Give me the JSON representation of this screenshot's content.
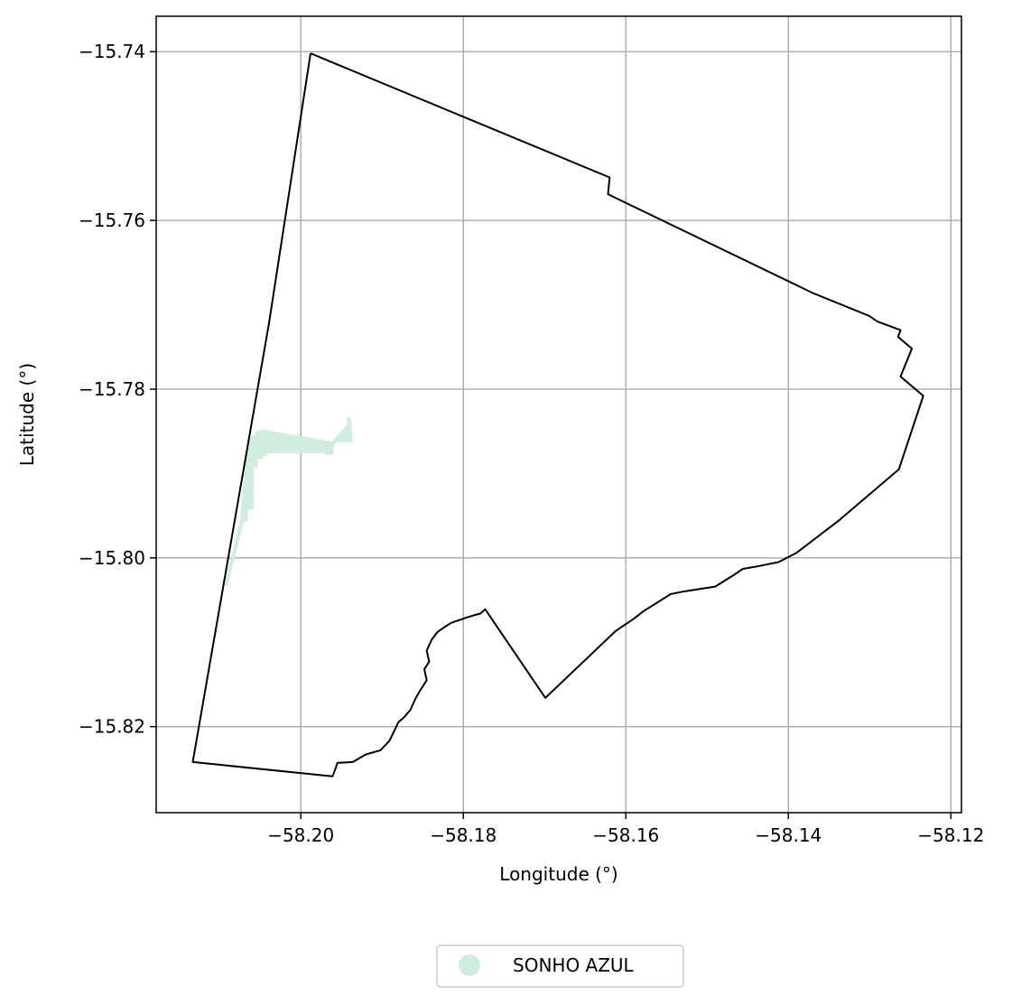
{
  "chart_data": {
    "type": "map",
    "xlabel": "Longitude (°)",
    "ylabel": "Latitude (°)",
    "xlim": [
      -58.2178,
      -58.1187
    ],
    "ylim": [
      -15.8302,
      -15.7358
    ],
    "grid": true,
    "xticks": [
      -58.2,
      -58.18,
      -58.16,
      -58.14,
      -58.12
    ],
    "yticks": [
      -15.74,
      -15.76,
      -15.78,
      -15.8,
      -15.82
    ],
    "xtick_labels": [
      "−58.20",
      "−58.18",
      "−58.16",
      "−58.14",
      "−58.12"
    ],
    "ytick_labels": [
      "−15.74",
      "−15.76",
      "−15.78",
      "−15.80",
      "−15.82"
    ],
    "boundary": {
      "stroke": "#000000",
      "coords": [
        [
          -58.1988,
          -15.7402
        ],
        [
          -58.162,
          -15.7549
        ],
        [
          -58.1622,
          -15.7569
        ],
        [
          -58.137,
          -15.7686
        ],
        [
          -58.1301,
          -15.7713
        ],
        [
          -58.129,
          -15.772
        ],
        [
          -58.1262,
          -15.773
        ],
        [
          -58.1265,
          -15.7738
        ],
        [
          -58.1248,
          -15.7752
        ],
        [
          -58.1262,
          -15.7785
        ],
        [
          -58.1234,
          -15.7808
        ],
        [
          -58.1264,
          -15.7895
        ],
        [
          -58.1337,
          -15.7955
        ],
        [
          -58.139,
          -15.7994
        ],
        [
          -58.1412,
          -15.8005
        ],
        [
          -58.1438,
          -15.801
        ],
        [
          -58.1456,
          -15.8013
        ],
        [
          -58.147,
          -15.8022
        ],
        [
          -58.149,
          -15.8034
        ],
        [
          -58.153,
          -15.804
        ],
        [
          -58.1545,
          -15.8043
        ],
        [
          -58.1578,
          -15.8063
        ],
        [
          -58.159,
          -15.8072
        ],
        [
          -58.1613,
          -15.8087
        ],
        [
          -58.1699,
          -15.8166
        ],
        [
          -58.1773,
          -15.8061
        ],
        [
          -58.1779,
          -15.8066
        ],
        [
          -58.1787,
          -15.8068
        ],
        [
          -58.1797,
          -15.8071
        ],
        [
          -58.1806,
          -15.8074
        ],
        [
          -58.1815,
          -15.8077
        ],
        [
          -58.1823,
          -15.8082
        ],
        [
          -58.1832,
          -15.8088
        ],
        [
          -58.1839,
          -15.8097
        ],
        [
          -58.1845,
          -15.811
        ],
        [
          -58.1842,
          -15.8123
        ],
        [
          -58.1848,
          -15.8132
        ],
        [
          -58.1845,
          -15.8145
        ],
        [
          -58.1853,
          -15.8157
        ],
        [
          -58.1859,
          -15.8167
        ],
        [
          -58.1865,
          -15.818
        ],
        [
          -58.1872,
          -15.8188
        ],
        [
          -58.188,
          -15.8195
        ],
        [
          -58.1885,
          -15.8205
        ],
        [
          -58.1891,
          -15.8217
        ],
        [
          -58.1902,
          -15.8228
        ],
        [
          -58.192,
          -15.8233
        ],
        [
          -58.1936,
          -15.8242
        ],
        [
          -58.1955,
          -15.8243
        ],
        [
          -58.1957,
          -15.8249
        ],
        [
          -58.1961,
          -15.8259
        ],
        [
          -58.2133,
          -15.8242
        ],
        [
          -58.2039,
          -15.7721
        ],
        [
          -58.1988,
          -15.7402
        ]
      ]
    },
    "series": [
      {
        "name": "SONHO AZUL",
        "color": "#d0ede0",
        "polygon": [
          [
            -58.1943,
            -15.7832
          ],
          [
            -58.1938,
            -15.7835
          ],
          [
            -58.1936,
            -15.7863
          ],
          [
            -58.1956,
            -15.7863
          ],
          [
            -58.196,
            -15.7868
          ],
          [
            -58.1959,
            -15.7873
          ],
          [
            -58.196,
            -15.7878
          ],
          [
            -58.197,
            -15.7878
          ],
          [
            -58.197,
            -15.7876
          ],
          [
            -58.2003,
            -15.7876
          ],
          [
            -58.203,
            -15.7876
          ],
          [
            -58.204,
            -15.7876
          ],
          [
            -58.2043,
            -15.788
          ],
          [
            -58.2047,
            -15.788
          ],
          [
            -58.2047,
            -15.7883
          ],
          [
            -58.2053,
            -15.7883
          ],
          [
            -58.2053,
            -15.7893
          ],
          [
            -58.2058,
            -15.7893
          ],
          [
            -58.2058,
            -15.7943
          ],
          [
            -58.2065,
            -15.7943
          ],
          [
            -58.2065,
            -15.7957
          ],
          [
            -58.207,
            -15.7957
          ],
          [
            -58.209,
            -15.8033
          ],
          [
            -58.2094,
            -15.8033
          ],
          [
            -58.2075,
            -15.7955
          ],
          [
            -58.2068,
            -15.788
          ],
          [
            -58.2064,
            -15.786
          ],
          [
            -58.2055,
            -15.785
          ],
          [
            -58.2046,
            -15.7848
          ],
          [
            -58.1962,
            -15.7862
          ],
          [
            -58.1943,
            -15.7842
          ]
        ]
      }
    ],
    "legend": {
      "position": "bottom-center",
      "entries": [
        "SONHO AZUL"
      ]
    }
  }
}
